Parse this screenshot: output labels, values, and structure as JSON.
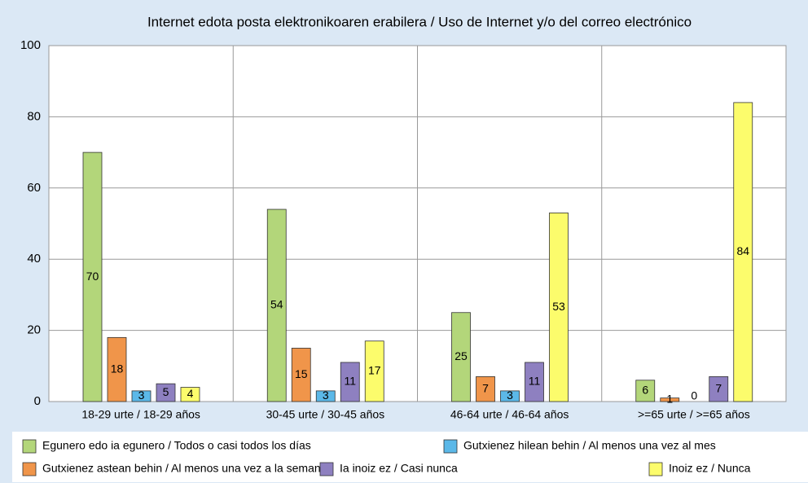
{
  "chart_data": {
    "type": "bar",
    "title": "Internet edota posta elektronikoaren erabilera / Uso de Internet y/o del correo electrónico",
    "categories": [
      "18-29 urte / 18-29 años",
      "30-45 urte / 30-45 años",
      "46-64 urte / 46-64 años",
      ">=65 urte / >=65 años"
    ],
    "series": [
      {
        "name": "Egunero edo ia egunero / Todos o casi todos los días",
        "color": "#b3d67a",
        "values": [
          70,
          54,
          25,
          6
        ]
      },
      {
        "name": "Gutxienez astean behin / Al menos una vez a la semana",
        "color": "#f0954a",
        "values": [
          18,
          15,
          7,
          1
        ]
      },
      {
        "name": "Gutxienez hilean behin / Al menos una vez al mes",
        "color": "#5bb8e8",
        "values": [
          3,
          3,
          3,
          0
        ]
      },
      {
        "name": "Ia inoiz ez / Casi nunca",
        "color": "#8e80c0",
        "values": [
          5,
          11,
          11,
          7
        ]
      },
      {
        "name": "Inoiz ez / Nunca",
        "color": "#fcfc6c",
        "values": [
          4,
          17,
          53,
          84
        ]
      }
    ],
    "ylim": [
      0,
      100
    ],
    "yticks": [
      0,
      20,
      40,
      60,
      80,
      100
    ],
    "grid": true,
    "legend": "bottom"
  }
}
